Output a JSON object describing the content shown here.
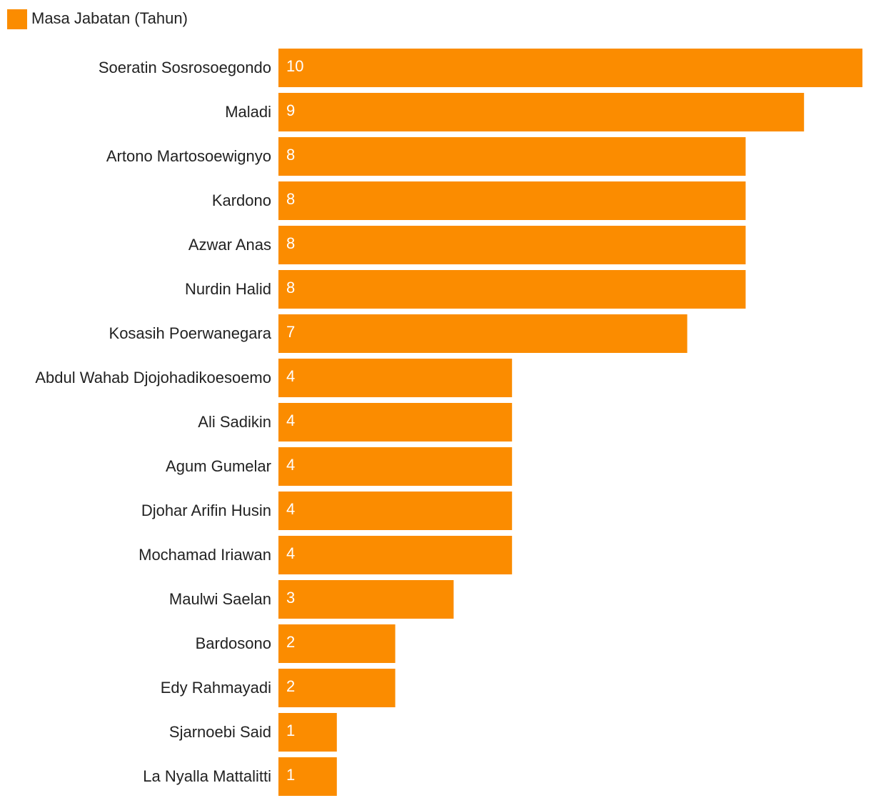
{
  "chart_data": {
    "type": "bar",
    "orientation": "horizontal",
    "legend": "top-left",
    "xlim": [
      0,
      10
    ],
    "series": [
      {
        "name": "Masa Jabatan (Tahun)",
        "color": "#fb8c00",
        "values": [
          10,
          9,
          8,
          8,
          8,
          8,
          7,
          4,
          4,
          4,
          4,
          4,
          3,
          2,
          2,
          1,
          1
        ]
      }
    ],
    "categories": [
      "Soeratin Sosrosoegondo",
      "Maladi",
      "Artono Martosoewignyo",
      "Kardono",
      "Azwar Anas",
      "Nurdin Halid",
      "Kosasih Poerwanegara",
      "Abdul Wahab Djojohadikoesoemo",
      "Ali Sadikin",
      "Agum Gumelar",
      "Djohar Arifin Husin",
      "Mochamad Iriawan",
      "Maulwi Saelan",
      "Bardosono",
      "Edy Rahmayadi",
      "Sjarnoebi Said",
      "La Nyalla Mattalitti"
    ],
    "data_labels": true
  }
}
